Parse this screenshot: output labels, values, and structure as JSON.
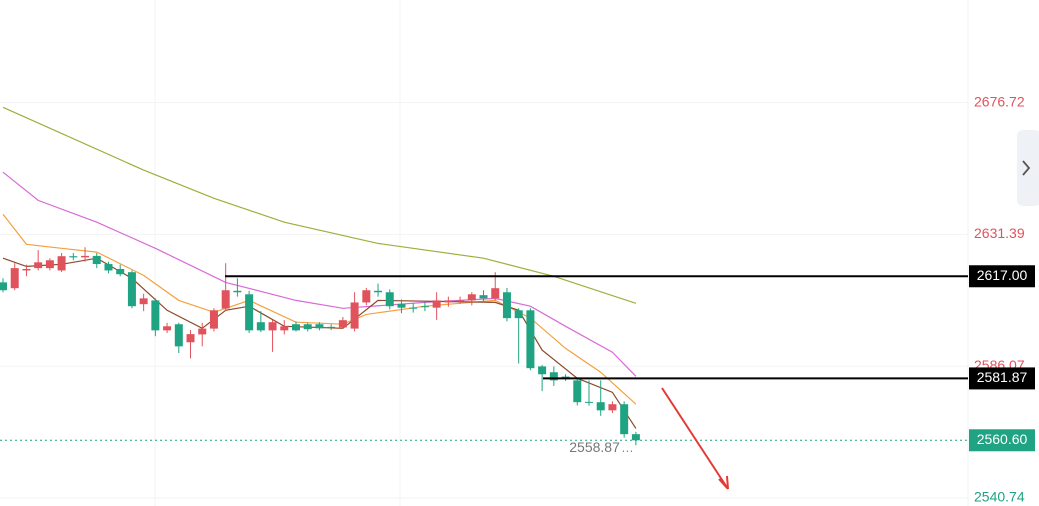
{
  "chart_data": {
    "type": "candlestick",
    "open": [
      2614.9,
      2612.9,
      2619,
      2619.8,
      2619.8,
      2619,
      2623.9,
      2623.5,
      2624,
      2621.2,
      2619.5,
      2618.4,
      2607.4,
      2608.7,
      2598.4,
      2600.5,
      2594.3,
      2597,
      2599,
      2605.9,
      2612,
      2610.8,
      2601.2,
      2598.4,
      2598.4,
      2600.5,
      2600.5,
      2600.5,
      2599.6,
      2599.4,
      2599,
      2608,
      2612,
      2611.5,
      2607.5,
      2606.2,
      2606.7,
      2606.2,
      2608,
      2608.5,
      2608.7,
      2610.5,
      2609.4,
      2611.5,
      2605.3,
      2605.3,
      2586,
      2584,
      2582.5,
      2581.2,
      2573.8,
      2573.7,
      2570.9,
      2573,
      2562.7
    ],
    "high": [
      2616.3,
      2621.5,
      2621,
      2626,
      2623.2,
      2625,
      2625,
      2627,
      2625,
      2622,
      2621,
      2619,
      2611,
      2609.4,
      2601,
      2601,
      2598.5,
      2601,
      2606,
      2621.5,
      2616.3,
      2612,
      2605,
      2602,
      2601.9,
      2601.5,
      2601,
      2601.2,
      2600.5,
      2603,
      2611.5,
      2613,
      2614.5,
      2612.5,
      2609,
      2607.8,
      2608.5,
      2611.5,
      2610,
      2610,
      2611.5,
      2612.2,
      2618.4,
      2613,
      2606,
      2606,
      2586.5,
      2586,
      2583.3,
      2581.9,
      2581.2,
      2581.2,
      2574,
      2574,
      2563.5
    ],
    "low": [
      2611.5,
      2612.2,
      2617,
      2619,
      2619,
      2618.5,
      2622.5,
      2622,
      2619.8,
      2618,
      2617,
      2606,
      2605,
      2596.4,
      2597.5,
      2590.6,
      2588.8,
      2592.9,
      2598,
      2605,
      2610,
      2597.5,
      2597.8,
      2591,
      2597,
      2598,
      2598,
      2598.4,
      2598.5,
      2599,
      2598,
      2607,
      2610,
      2605.6,
      2604.3,
      2604.5,
      2605,
      2602,
      2606.5,
      2607.5,
      2607,
      2608,
      2608.7,
      2601.5,
      2587,
      2584.7,
      2577.5,
      2579.3,
      2581,
      2572.6,
      2572.5,
      2569,
      2570,
      2561.5,
      2558.87
    ],
    "close": [
      2612.2,
      2619.8,
      2619.5,
      2621.8,
      2622.5,
      2623.9,
      2623.5,
      2624,
      2621.2,
      2619,
      2617.7,
      2606.7,
      2609.4,
      2598.4,
      2599.8,
      2592.9,
      2597.1,
      2599,
      2605.3,
      2612.2,
      2611.5,
      2598.4,
      2598.4,
      2601.2,
      2599.8,
      2598.4,
      2598.8,
      2599.1,
      2599.3,
      2601.9,
      2608,
      2612.2,
      2611.5,
      2606.7,
      2606.2,
      2606,
      2606.4,
      2608.7,
      2608.7,
      2608.7,
      2610.8,
      2609.4,
      2612.9,
      2602.6,
      2602.6,
      2585.4,
      2583.3,
      2581.2,
      2582.2,
      2573.7,
      2573.6,
      2570.9,
      2573,
      2562.7,
      2560.6
    ],
    "up_color": "#e0535c",
    "down_color": "#1fa383",
    "moving_averages": [
      {
        "color": "#9bb03b",
        "x": [
          0,
          12,
          18,
          24,
          32,
          41,
          47,
          54
        ],
        "values": [
          2675.1,
          2653.5,
          2643.8,
          2635.6,
          2628.3,
          2623.2,
          2617,
          2607.7
        ]
      },
      {
        "color": "#d96ad6",
        "x": [
          0,
          3,
          8,
          13,
          19,
          25,
          29,
          36,
          42,
          45,
          48,
          52,
          54
        ],
        "values": [
          2652.8,
          2643.1,
          2635.6,
          2626.6,
          2614.9,
          2608.7,
          2606,
          2608,
          2609.4,
          2606.7,
          2599.8,
          2590.9,
          2582.6
        ]
      },
      {
        "color": "#f5a040",
        "x": [
          0,
          2,
          5,
          8,
          12,
          15,
          18,
          21,
          25,
          29,
          31,
          36,
          42,
          45,
          48,
          51,
          54
        ],
        "values": [
          2638.3,
          2628,
          2626.6,
          2625.3,
          2617.3,
          2608.7,
          2604.6,
          2608.7,
          2601.2,
          2600.5,
          2603.9,
          2606.7,
          2608.7,
          2602.6,
          2592.2,
          2584,
          2573
        ]
      },
      {
        "color": "#8b4a2a",
        "x": [
          0,
          2,
          5,
          8,
          11,
          14,
          17,
          19,
          21,
          24,
          29,
          32,
          42,
          44,
          46,
          49,
          52,
          54
        ],
        "values": [
          2623.2,
          2620.4,
          2621.1,
          2623.2,
          2616.3,
          2605.3,
          2599.1,
          2605.3,
          2606.7,
          2599.8,
          2599.1,
          2608.7,
          2608,
          2605.3,
          2591.6,
          2581.9,
          2577.1,
          2564.7
        ]
      }
    ],
    "levels": [
      {
        "value": 2617,
        "label": "2617.00"
      },
      {
        "value": 2581.87,
        "label": "2581.87"
      }
    ],
    "last_price": {
      "value": 2560.6,
      "label": "2560.60"
    },
    "ylim": [
      2538,
      2712
    ],
    "yticks": [
      2540.74,
      2586.07,
      2631.39,
      2676.72
    ],
    "grid": true
  }
}
